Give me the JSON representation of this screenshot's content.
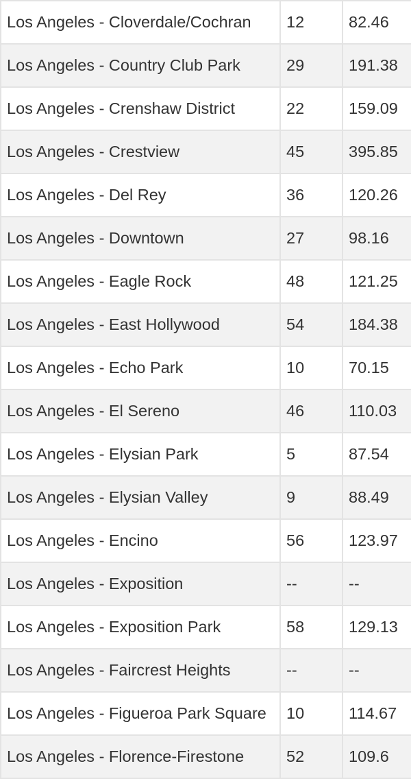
{
  "table": {
    "rows": [
      {
        "name": "Los Angeles - Cloverdale/Cochran",
        "count": "12",
        "value": "82.46"
      },
      {
        "name": "Los Angeles - Country Club Park",
        "count": "29",
        "value": "191.38"
      },
      {
        "name": "Los Angeles - Crenshaw District",
        "count": "22",
        "value": "159.09"
      },
      {
        "name": "Los Angeles - Crestview",
        "count": "45",
        "value": "395.85"
      },
      {
        "name": "Los Angeles - Del Rey",
        "count": "36",
        "value": "120.26"
      },
      {
        "name": "Los Angeles - Downtown",
        "count": "27",
        "value": "98.16"
      },
      {
        "name": "Los Angeles - Eagle Rock",
        "count": "48",
        "value": "121.25"
      },
      {
        "name": "Los Angeles - East Hollywood",
        "count": "54",
        "value": "184.38"
      },
      {
        "name": "Los Angeles - Echo Park",
        "count": "10",
        "value": "70.15"
      },
      {
        "name": "Los Angeles - El Sereno",
        "count": "46",
        "value": "110.03"
      },
      {
        "name": "Los Angeles - Elysian Park",
        "count": "5",
        "value": "87.54"
      },
      {
        "name": "Los Angeles - Elysian Valley",
        "count": "9",
        "value": "88.49"
      },
      {
        "name": "Los Angeles - Encino",
        "count": "56",
        "value": "123.97"
      },
      {
        "name": "Los Angeles - Exposition",
        "count": "--",
        "value": "--"
      },
      {
        "name": "Los Angeles - Exposition Park",
        "count": "58",
        "value": "129.13"
      },
      {
        "name": "Los Angeles - Faircrest Heights",
        "count": "--",
        "value": "--"
      },
      {
        "name": "Los Angeles - Figueroa Park Square",
        "count": "10",
        "value": "114.67"
      },
      {
        "name": "Los Angeles - Florence-Firestone",
        "count": "52",
        "value": "109.6"
      }
    ]
  },
  "colors": {
    "text": "#333333",
    "border": "#e3e3e3",
    "stripe": "#f2f2f2",
    "background": "#ffffff"
  }
}
